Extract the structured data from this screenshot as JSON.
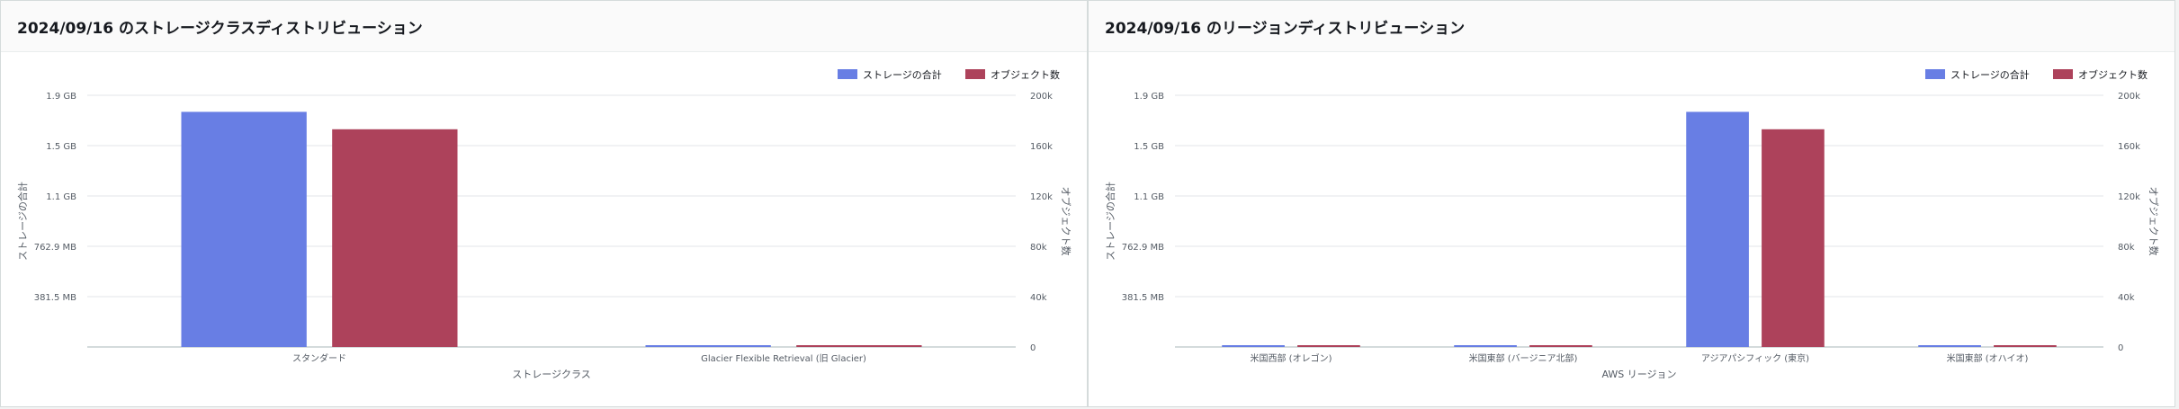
{
  "colors": {
    "storage": "#687ee4",
    "objects": "#ad425b",
    "grid": "#e3e6e9",
    "axis": "#aab7b8"
  },
  "panels": [
    {
      "title": "2024/09/16 のストレージクラスディストリビューション",
      "chart_data": {
        "type": "bar",
        "categories": [
          "スタンダード",
          "Glacier Flexible Retrieval (旧 Glacier)"
        ],
        "xlabel": "ストレージクラス",
        "ylabel_left": "ストレージの合計",
        "ylabel_right": "オブジェクト数",
        "legend_position": "top-right",
        "grid": true,
        "left_axis": {
          "unit": "GB",
          "ylim": [
            0,
            1.8626
          ],
          "ticks": [
            {
              "value": 0.3725,
              "label": "381.5 MB"
            },
            {
              "value": 0.7451,
              "label": "762.9 MB"
            },
            {
              "value": 1.1176,
              "label": "1.1 GB"
            },
            {
              "value": 1.4901,
              "label": "1.5 GB"
            },
            {
              "value": 1.8626,
              "label": "1.9 GB"
            }
          ]
        },
        "right_axis": {
          "ylim": [
            0,
            200000
          ],
          "ticks": [
            {
              "value": 0,
              "label": "0"
            },
            {
              "value": 40000,
              "label": "40k"
            },
            {
              "value": 80000,
              "label": "80k"
            },
            {
              "value": 120000,
              "label": "120k"
            },
            {
              "value": 160000,
              "label": "160k"
            },
            {
              "value": 200000,
              "label": "200k"
            }
          ]
        },
        "series": [
          {
            "name": "ストレージの合計",
            "axis": "left",
            "color_key": "storage",
            "values": [
              1.74,
              0.002
            ]
          },
          {
            "name": "オブジェクト数",
            "axis": "right",
            "color_key": "objects",
            "values": [
              173000,
              200
            ]
          }
        ]
      }
    },
    {
      "title": "2024/09/16 のリージョンディストリビューション",
      "chart_data": {
        "type": "bar",
        "categories": [
          "米国西部 (オレゴン)",
          "米国東部 (バージニア北部)",
          "アジアパシフィック (東京)",
          "米国東部 (オハイオ)"
        ],
        "xlabel": "AWS リージョン",
        "ylabel_left": "ストレージの合計",
        "ylabel_right": "オブジェクト数",
        "legend_position": "top-right",
        "grid": true,
        "left_axis": {
          "unit": "GB",
          "ylim": [
            0,
            1.8626
          ],
          "ticks": [
            {
              "value": 0.3725,
              "label": "381.5 MB"
            },
            {
              "value": 0.7451,
              "label": "762.9 MB"
            },
            {
              "value": 1.1176,
              "label": "1.1 GB"
            },
            {
              "value": 1.4901,
              "label": "1.5 GB"
            },
            {
              "value": 1.8626,
              "label": "1.9 GB"
            }
          ]
        },
        "right_axis": {
          "ylim": [
            0,
            200000
          ],
          "ticks": [
            {
              "value": 0,
              "label": "0"
            },
            {
              "value": 40000,
              "label": "40k"
            },
            {
              "value": 80000,
              "label": "80k"
            },
            {
              "value": 120000,
              "label": "120k"
            },
            {
              "value": 160000,
              "label": "160k"
            },
            {
              "value": 200000,
              "label": "200k"
            }
          ]
        },
        "series": [
          {
            "name": "ストレージの合計",
            "axis": "left",
            "color_key": "storage",
            "values": [
              0.002,
              0.002,
              1.74,
              0.002
            ]
          },
          {
            "name": "オブジェクト数",
            "axis": "right",
            "color_key": "objects",
            "values": [
              200,
              200,
              173000,
              200
            ]
          }
        ]
      }
    }
  ]
}
